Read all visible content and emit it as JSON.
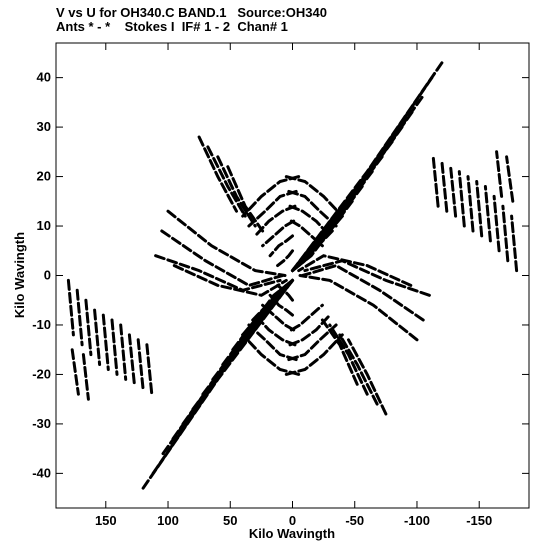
{
  "title_line1": "V vs U for OH340.C BAND.1   Source:OH340",
  "title_line2": "Ants * - *    Stokes I  IF# 1 - 2  Chan# 1",
  "chart_data": {
    "type": "scatter",
    "xlabel": "Kilo Wavingth",
    "ylabel": "Kilo Wavingth",
    "xlim": [
      190,
      -190
    ],
    "ylim": [
      -47,
      47
    ],
    "xticks": [
      150,
      100,
      50,
      0,
      -50,
      -100,
      -150
    ],
    "yticks": [
      40,
      30,
      20,
      10,
      0,
      -10,
      -20,
      -30,
      -40
    ],
    "xtick_labels": [
      "150",
      "100",
      "50",
      "0",
      "-50",
      "-100",
      "-150"
    ],
    "ytick_labels": [
      "40",
      "30",
      "20",
      "10",
      "0",
      "-10",
      "-20",
      "-30",
      "-40"
    ],
    "grid": false,
    "mark_color": "#000000",
    "series": [
      {
        "tracks": [
          [
            [
              -120,
              43
            ],
            [
              -60,
              21
            ],
            [
              0,
              1
            ]
          ],
          [
            [
              -112,
              40
            ],
            [
              -55,
              19
            ],
            [
              0,
              1
            ]
          ],
          [
            [
              -104,
              36
            ],
            [
              -50,
              17
            ],
            [
              0,
              1
            ]
          ],
          [
            [
              -96,
              33
            ],
            [
              -45,
              15
            ],
            [
              0,
              1
            ]
          ],
          [
            [
              -88,
              30
            ],
            [
              -40,
              13
            ],
            [
              0,
              1
            ]
          ],
          [
            [
              -80,
              27
            ],
            [
              -35,
              12
            ],
            [
              0,
              1
            ]
          ],
          [
            [
              -72,
              24
            ],
            [
              -30,
              10
            ],
            [
              0,
              1
            ]
          ],
          [
            [
              -64,
              21
            ],
            [
              -25,
              8
            ],
            [
              0,
              1
            ]
          ],
          [
            [
              -56,
              18
            ],
            [
              -20,
              6
            ],
            [
              0,
              1
            ]
          ],
          [
            [
              -48,
              15
            ],
            [
              -15,
              4
            ],
            [
              0,
              1
            ]
          ],
          [
            [
              -40,
              12
            ],
            [
              -10,
              3
            ],
            [
              0,
              1
            ]
          ],
          [
            [
              -32,
              9
            ],
            [
              -5,
              2
            ],
            [
              0,
              1
            ]
          ],
          [
            [
              120,
              -43
            ],
            [
              60,
              -21
            ],
            [
              0,
              -1
            ]
          ],
          [
            [
              112,
              -40
            ],
            [
              55,
              -19
            ],
            [
              0,
              -1
            ]
          ],
          [
            [
              104,
              -36
            ],
            [
              50,
              -17
            ],
            [
              0,
              -1
            ]
          ],
          [
            [
              96,
              -33
            ],
            [
              45,
              -15
            ],
            [
              0,
              -1
            ]
          ],
          [
            [
              88,
              -30
            ],
            [
              40,
              -13
            ],
            [
              0,
              -1
            ]
          ],
          [
            [
              80,
              -27
            ],
            [
              35,
              -12
            ],
            [
              0,
              -1
            ]
          ],
          [
            [
              72,
              -24
            ],
            [
              30,
              -10
            ],
            [
              0,
              -1
            ]
          ],
          [
            [
              64,
              -21
            ],
            [
              25,
              -8
            ],
            [
              0,
              -1
            ]
          ],
          [
            [
              56,
              -18
            ],
            [
              20,
              -6
            ],
            [
              0,
              -1
            ]
          ],
          [
            [
              48,
              -15
            ],
            [
              15,
              -4
            ],
            [
              0,
              -1
            ]
          ],
          [
            [
              40,
              -12
            ],
            [
              10,
              -3
            ],
            [
              0,
              -1
            ]
          ],
          [
            [
              32,
              -9
            ],
            [
              5,
              -2
            ],
            [
              0,
              -1
            ]
          ],
          [
            [
              180,
              -1
            ],
            [
              176,
              -12
            ]
          ],
          [
            [
              173,
              -3
            ],
            [
              169,
              -14
            ]
          ],
          [
            [
              166,
              -5
            ],
            [
              162,
              -16
            ]
          ],
          [
            [
              159,
              -7
            ],
            [
              155,
              -18
            ]
          ],
          [
            [
              152,
              -8
            ],
            [
              148,
              -19
            ]
          ],
          [
            [
              145,
              -9
            ],
            [
              141,
              -20
            ]
          ],
          [
            [
              138,
              -10
            ],
            [
              134,
              -21
            ]
          ],
          [
            [
              131,
              -12
            ],
            [
              127,
              -22
            ]
          ],
          [
            [
              124,
              -13
            ],
            [
              120,
              -23
            ]
          ],
          [
            [
              117,
              -14
            ],
            [
              113,
              -24
            ]
          ],
          [
            [
              177,
              -15
            ],
            [
              172,
              -24
            ]
          ],
          [
            [
              168,
              -16
            ],
            [
              164,
              -25
            ]
          ],
          [
            [
              -180,
              1
            ],
            [
              -176,
              12
            ]
          ],
          [
            [
              -173,
              3
            ],
            [
              -169,
              14
            ]
          ],
          [
            [
              -166,
              5
            ],
            [
              -162,
              16
            ]
          ],
          [
            [
              -159,
              7
            ],
            [
              -155,
              18
            ]
          ],
          [
            [
              -152,
              8
            ],
            [
              -148,
              19
            ]
          ],
          [
            [
              -145,
              9
            ],
            [
              -141,
              20
            ]
          ],
          [
            [
              -138,
              10
            ],
            [
              -134,
              21
            ]
          ],
          [
            [
              -131,
              12
            ],
            [
              -127,
              22
            ]
          ],
          [
            [
              -124,
              13
            ],
            [
              -120,
              23
            ]
          ],
          [
            [
              -117,
              14
            ],
            [
              -113,
              24
            ]
          ],
          [
            [
              -177,
              15
            ],
            [
              -172,
              24
            ]
          ],
          [
            [
              -168,
              16
            ],
            [
              -164,
              25
            ]
          ],
          [
            [
              110,
              4
            ],
            [
              75,
              1
            ],
            [
              40,
              -3
            ],
            [
              10,
              -1
            ]
          ],
          [
            [
              105,
              9
            ],
            [
              70,
              3
            ],
            [
              35,
              -2
            ],
            [
              8,
              0
            ]
          ],
          [
            [
              100,
              13
            ],
            [
              65,
              6
            ],
            [
              30,
              1
            ],
            [
              6,
              0
            ]
          ],
          [
            [
              95,
              2
            ],
            [
              60,
              -2
            ],
            [
              25,
              -4
            ],
            [
              5,
              -1
            ]
          ],
          [
            [
              -110,
              -4
            ],
            [
              -75,
              -1
            ],
            [
              -40,
              3
            ],
            [
              -10,
              1
            ]
          ],
          [
            [
              -105,
              -9
            ],
            [
              -70,
              -3
            ],
            [
              -35,
              2
            ],
            [
              -8,
              0
            ]
          ],
          [
            [
              -100,
              -13
            ],
            [
              -65,
              -6
            ],
            [
              -30,
              -1
            ],
            [
              -6,
              0
            ]
          ],
          [
            [
              -95,
              -2
            ],
            [
              -60,
              2
            ],
            [
              -25,
              4
            ],
            [
              -5,
              1
            ]
          ],
          [
            [
              -5,
              20
            ],
            [
              10,
              19
            ],
            [
              25,
              16
            ],
            [
              40,
              12
            ]
          ],
          [
            [
              -3,
              17
            ],
            [
              10,
              16
            ],
            [
              22,
              13
            ],
            [
              35,
              10
            ]
          ],
          [
            [
              -2,
              14
            ],
            [
              8,
              13
            ],
            [
              19,
              11
            ],
            [
              30,
              8
            ]
          ],
          [
            [
              -1,
              11
            ],
            [
              6,
              10
            ],
            [
              15,
              8
            ],
            [
              24,
              6
            ]
          ],
          [
            [
              0,
              8
            ],
            [
              5,
              7
            ],
            [
              11,
              6
            ],
            [
              18,
              4
            ]
          ],
          [
            [
              0,
              5
            ],
            [
              3,
              4
            ],
            [
              7,
              3
            ],
            [
              12,
              2
            ]
          ],
          [
            [
              5,
              20
            ],
            [
              -10,
              19
            ],
            [
              -25,
              16
            ],
            [
              -40,
              12
            ]
          ],
          [
            [
              3,
              17
            ],
            [
              -10,
              16
            ],
            [
              -22,
              13
            ],
            [
              -35,
              10
            ]
          ],
          [
            [
              2,
              14
            ],
            [
              -8,
              13
            ],
            [
              -19,
              11
            ],
            [
              -30,
              8
            ]
          ],
          [
            [
              1,
              11
            ],
            [
              -6,
              10
            ],
            [
              -15,
              8
            ],
            [
              -24,
              6
            ]
          ],
          [
            [
              5,
              -20
            ],
            [
              -10,
              -19
            ],
            [
              -25,
              -16
            ],
            [
              -40,
              -12
            ]
          ],
          [
            [
              3,
              -17
            ],
            [
              -10,
              -16
            ],
            [
              -22,
              -13
            ],
            [
              -35,
              -10
            ]
          ],
          [
            [
              2,
              -14
            ],
            [
              -8,
              -13
            ],
            [
              -19,
              -11
            ],
            [
              -30,
              -8
            ]
          ],
          [
            [
              1,
              -11
            ],
            [
              -6,
              -10
            ],
            [
              -15,
              -8
            ],
            [
              -24,
              -6
            ]
          ],
          [
            [
              -5,
              -20
            ],
            [
              10,
              -19
            ],
            [
              25,
              -16
            ],
            [
              40,
              -12
            ]
          ],
          [
            [
              -3,
              -17
            ],
            [
              10,
              -16
            ],
            [
              22,
              -13
            ],
            [
              35,
              -10
            ]
          ],
          [
            [
              -2,
              -14
            ],
            [
              8,
              -13
            ],
            [
              19,
              -11
            ],
            [
              30,
              -8
            ]
          ],
          [
            [
              -1,
              -11
            ],
            [
              6,
              -10
            ],
            [
              15,
              -8
            ],
            [
              24,
              -6
            ]
          ],
          [
            [
              0,
              -8
            ],
            [
              5,
              -7
            ],
            [
              11,
              -6
            ],
            [
              18,
              -4
            ]
          ],
          [
            [
              0,
              -5
            ],
            [
              3,
              -4
            ],
            [
              7,
              -3
            ],
            [
              12,
              -2
            ]
          ],
          [
            [
              75,
              28
            ],
            [
              60,
              20
            ],
            [
              45,
              13
            ]
          ],
          [
            [
              68,
              26
            ],
            [
              52,
              18
            ],
            [
              38,
              12
            ]
          ],
          [
            [
              60,
              24
            ],
            [
              45,
              16
            ],
            [
              30,
              10
            ]
          ],
          [
            [
              52,
              22
            ],
            [
              38,
              14
            ],
            [
              24,
              9
            ]
          ],
          [
            [
              -75,
              -28
            ],
            [
              -60,
              -20
            ],
            [
              -45,
              -13
            ]
          ],
          [
            [
              -68,
              -26
            ],
            [
              -52,
              -18
            ],
            [
              -38,
              -12
            ]
          ],
          [
            [
              -60,
              -24
            ],
            [
              -45,
              -16
            ],
            [
              -30,
              -10
            ]
          ],
          [
            [
              -52,
              -22
            ],
            [
              -38,
              -14
            ],
            [
              -24,
              -9
            ]
          ]
        ]
      }
    ]
  }
}
